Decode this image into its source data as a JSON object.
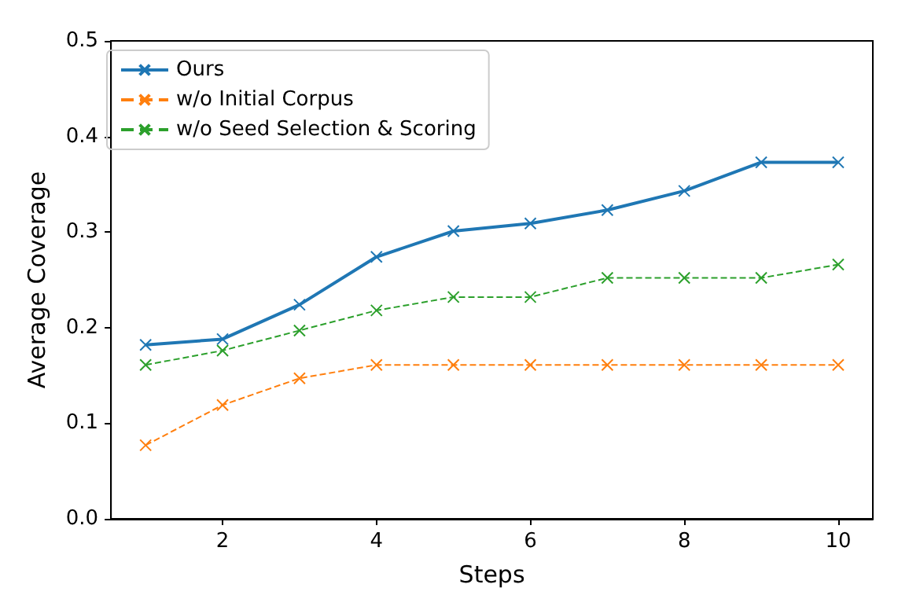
{
  "chart_data": {
    "type": "line",
    "xlabel": "Steps",
    "ylabel": "Average Coverage",
    "x": [
      1,
      2,
      3,
      4,
      5,
      6,
      7,
      8,
      9,
      10
    ],
    "xlim": [
      0.55,
      10.45
    ],
    "xticks": [
      2,
      4,
      6,
      8,
      10
    ],
    "ylim": [
      0,
      0.5
    ],
    "yticks": [
      {
        "value": 0,
        "label": "0.0"
      },
      0.1,
      0.2,
      0.3,
      0.4,
      0.5
    ],
    "grid": false,
    "legend": "top left",
    "marker": "cross",
    "series": [
      {
        "name": "Ours",
        "color": "#1f77b4",
        "line_style": "solid",
        "values": [
          0.182,
          0.188,
          0.224,
          0.274,
          0.301,
          0.309,
          0.323,
          0.343,
          0.373,
          0.373
        ]
      },
      {
        "name": "w/o Initial Corpus",
        "color": "#ff7f0e",
        "line_style": "dashed",
        "values": [
          0.077,
          0.119,
          0.147,
          0.161,
          0.161,
          0.161,
          0.161,
          0.161,
          0.161,
          0.161
        ]
      },
      {
        "name": "w/o Seed Selection & Scoring",
        "color": "#2ca02c",
        "line_style": "dashed",
        "values": [
          0.161,
          0.176,
          0.197,
          0.218,
          0.232,
          0.232,
          0.252,
          0.252,
          0.252,
          0.266
        ]
      }
    ]
  }
}
